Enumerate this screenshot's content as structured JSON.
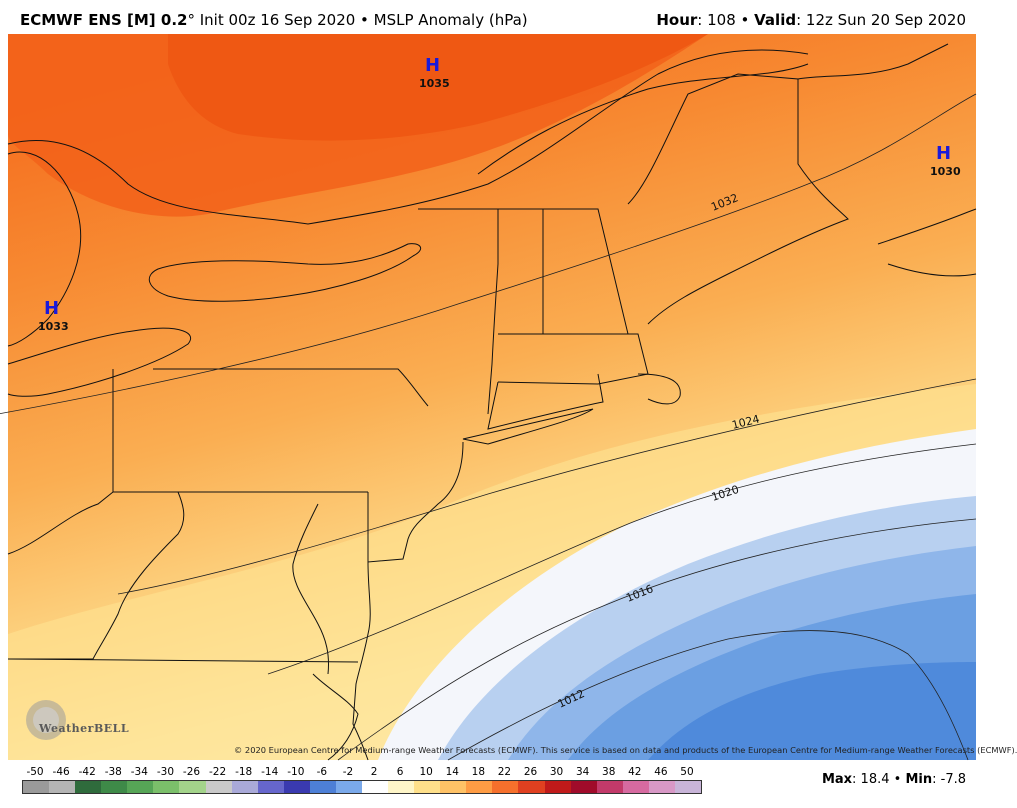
{
  "header": {
    "model": "ECMWF ENS [M] 0.2",
    "deg": "°",
    "init": " Init 00z 16 Sep 2020",
    "bullet": " • ",
    "field": "MSLP Anomaly (hPa)",
    "hour_label": "Hour",
    "hour_value": ": 108",
    "valid_label": "Valid",
    "valid_value": ": 12z Sun 20 Sep 2020"
  },
  "highs": [
    {
      "letter": "H",
      "value": "1035"
    },
    {
      "letter": "H",
      "value": "1030"
    },
    {
      "letter": "H",
      "value": "1033"
    }
  ],
  "isobars": [
    "1032",
    "1024",
    "1020",
    "1016",
    "1012"
  ],
  "credit": "© 2020 European Centre for Medium-range Weather Forecasts (ECMWF). This service is based on data and products of the European Centre for Medium-range Weather Forecasts (ECMWF).",
  "logo": "WeatherBELL",
  "scale": {
    "labels": [
      "-50",
      "-46",
      "-42",
      "-38",
      "-34",
      "-30",
      "-26",
      "-22",
      "-18",
      "-14",
      "-10",
      "-6",
      "-2",
      "2",
      "6",
      "10",
      "14",
      "18",
      "22",
      "26",
      "30",
      "34",
      "38",
      "42",
      "46",
      "50"
    ],
    "colors": [
      "#9a9a9a",
      "#b4b4b4",
      "#2f6b3c",
      "#3e8a48",
      "#56a556",
      "#7bbf6a",
      "#a3d38a",
      "#c9c9c9",
      "#a9a9d8",
      "#6666cc",
      "#3a3ab0",
      "#4d7fd6",
      "#7aa9ea",
      "#ffffff",
      "#fff6c8",
      "#ffe08a",
      "#ffc266",
      "#ff9c44",
      "#f6702c",
      "#e04020",
      "#c01a1a",
      "#a00b2a",
      "#c23a6a",
      "#d66aa0",
      "#d898c6",
      "#c8b4d8"
    ]
  },
  "stats": {
    "max_label": "Max",
    "max_value": ": 18.4",
    "min_label": "Min",
    "min_value": ": -7.8",
    "sep": " • "
  }
}
